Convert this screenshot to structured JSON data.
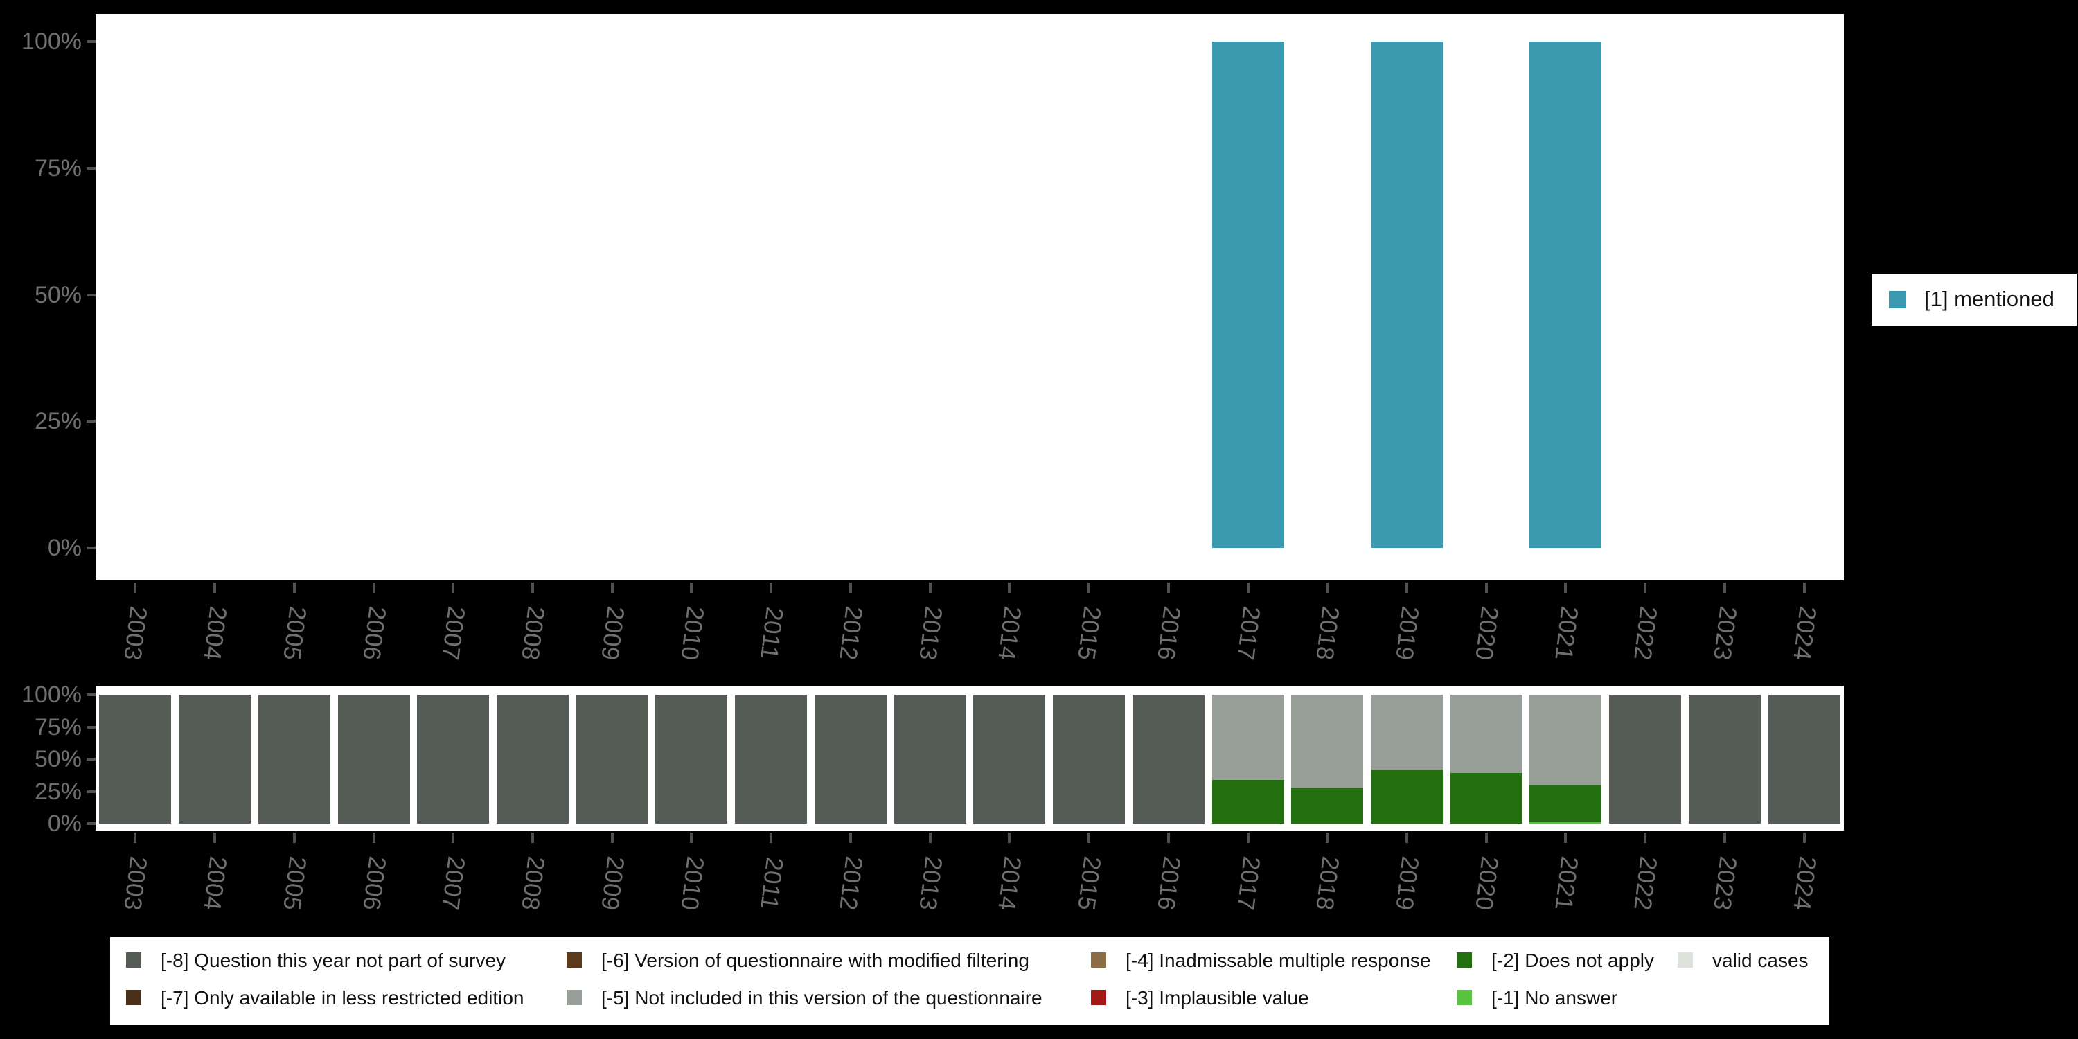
{
  "style": {
    "background": "#000000",
    "plot_background": "#ffffff",
    "axis_text_color": "#6f6f6f",
    "tick_color": "#515151",
    "legend_text_color": "#111111"
  },
  "top_legend": {
    "label": "[1] mentioned",
    "color": "#3b9ab0"
  },
  "missing_legend": {
    "items": [
      {
        "label": "[-8] Question this year not part of survey",
        "color": "#555c55"
      },
      {
        "label": "[-7] Only available in less restricted edition",
        "color": "#493018"
      },
      {
        "label": "[-6] Version of questionnaire with modified filtering",
        "color": "#5a3a1a"
      },
      {
        "label": "[-5] Not included in this version of the questionnaire",
        "color": "#979e97"
      },
      {
        "label": "[-4] Inadmissable multiple response",
        "color": "#8a6d46"
      },
      {
        "label": "[-3] Implausible value",
        "color": "#a31a17"
      },
      {
        "label": "[-2] Does not apply",
        "color": "#236e0e"
      },
      {
        "label": "[-1] No answer",
        "color": "#57c33f"
      },
      {
        "label": "valid cases",
        "color": "#dde3da"
      }
    ]
  },
  "chart_data": [
    {
      "type": "bar",
      "name": "values-by-year",
      "title": "",
      "xlabel": "",
      "ylabel": "",
      "ylim": [
        0,
        100
      ],
      "grid": false,
      "legend_position": "right",
      "y_ticks": [
        "0%",
        "25%",
        "50%",
        "75%",
        "100%"
      ],
      "categories": [
        "2003",
        "2004",
        "2005",
        "2006",
        "2007",
        "2008",
        "2009",
        "2010",
        "2011",
        "2012",
        "2013",
        "2014",
        "2015",
        "2016",
        "2017",
        "2018",
        "2019",
        "2020",
        "2021",
        "2022",
        "2023",
        "2024"
      ],
      "series": [
        {
          "name": "[1] mentioned",
          "color": "#3b9ab0",
          "values": [
            null,
            null,
            null,
            null,
            null,
            null,
            null,
            null,
            null,
            null,
            null,
            null,
            null,
            null,
            100,
            null,
            100,
            null,
            100,
            null,
            null,
            null
          ]
        }
      ]
    },
    {
      "type": "stacked-bar",
      "name": "missing-values-by-year",
      "title": "",
      "xlabel": "",
      "ylabel": "",
      "ylim": [
        0,
        100
      ],
      "grid": false,
      "legend_position": "bottom",
      "y_ticks": [
        "0%",
        "25%",
        "50%",
        "75%",
        "100%"
      ],
      "categories": [
        "2003",
        "2004",
        "2005",
        "2006",
        "2007",
        "2008",
        "2009",
        "2010",
        "2011",
        "2012",
        "2013",
        "2014",
        "2015",
        "2016",
        "2017",
        "2018",
        "2019",
        "2020",
        "2021",
        "2022",
        "2023",
        "2024"
      ],
      "series": [
        {
          "name": "[-8] Question this year not part of survey",
          "color": "#555c55",
          "values": [
            100,
            100,
            100,
            100,
            100,
            100,
            100,
            100,
            100,
            100,
            100,
            100,
            100,
            100,
            0,
            0,
            0,
            0,
            0,
            100,
            100,
            100
          ]
        },
        {
          "name": "[-1] No answer",
          "color": "#57c33f",
          "values": [
            0,
            0,
            0,
            0,
            0,
            0,
            0,
            0,
            0,
            0,
            0,
            0,
            0,
            0,
            0,
            0,
            0,
            0,
            1,
            0,
            0,
            0
          ]
        },
        {
          "name": "[-2] Does not apply",
          "color": "#236e0e",
          "values": [
            0,
            0,
            0,
            0,
            0,
            0,
            0,
            0,
            0,
            0,
            0,
            0,
            0,
            0,
            34,
            28,
            42,
            39,
            29,
            0,
            0,
            0
          ]
        },
        {
          "name": "[-5] Not included in this version of the questionnaire",
          "color": "#979e97",
          "values": [
            0,
            0,
            0,
            0,
            0,
            0,
            0,
            0,
            0,
            0,
            0,
            0,
            0,
            0,
            66,
            72,
            58,
            61,
            70,
            0,
            0,
            0
          ]
        }
      ]
    }
  ]
}
